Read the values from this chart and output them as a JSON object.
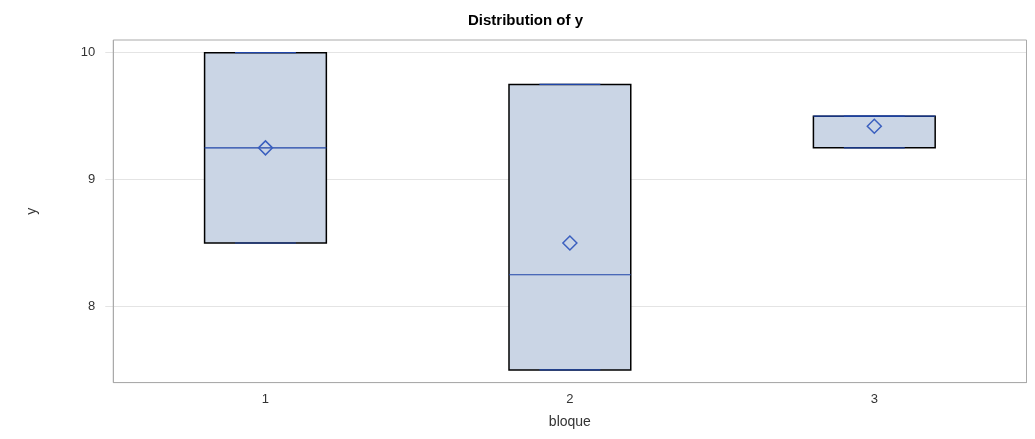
{
  "chart_data": {
    "type": "box",
    "title": "Distribution of y",
    "xlabel": "bloque",
    "ylabel": "y",
    "categories": [
      "1",
      "2",
      "3"
    ],
    "boxes": [
      {
        "low": 8.5,
        "q1": 8.5,
        "median": 9.25,
        "q3": 10,
        "high": 10,
        "mean": 9.25
      },
      {
        "low": 7.5,
        "q1": 7.5,
        "median": 8.25,
        "q3": 9.75,
        "high": 9.75,
        "mean": 8.5
      },
      {
        "low": 9.25,
        "q1": 9.25,
        "median": 9.5,
        "q3": 9.5,
        "high": 9.5,
        "mean": 9.42
      }
    ],
    "color": "#cad5e5",
    "ylim": [
      7.4,
      10.1
    ],
    "yticks": [
      8,
      9,
      10
    ],
    "grid": "y",
    "marker": "diamond"
  }
}
